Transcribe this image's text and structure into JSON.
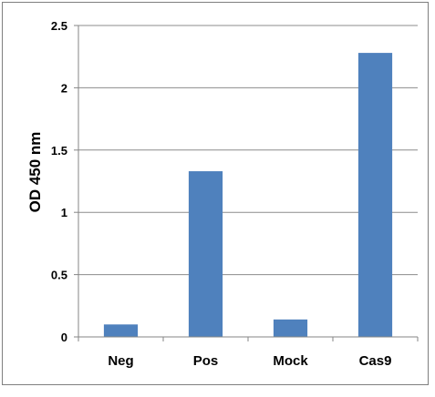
{
  "chart_data": {
    "type": "bar",
    "title": "",
    "xlabel": "",
    "ylabel": "OD 450 nm",
    "categories": [
      "Neg",
      "Pos",
      "Mock",
      "Cas9"
    ],
    "values": [
      0.1,
      1.33,
      0.14,
      2.28
    ],
    "ylim": [
      0,
      2.5
    ],
    "yticks": [
      0,
      0.5,
      1,
      1.5,
      2,
      2.5
    ],
    "ytick_labels": [
      "0",
      "0.5",
      "1",
      "1.5",
      "2",
      "2.5"
    ],
    "grid": true,
    "legend": "none",
    "colors": {
      "bar": "#4f81bd",
      "grid": "#8c8c8c",
      "axis": "#868686",
      "frame": "#7f7f7f"
    }
  }
}
